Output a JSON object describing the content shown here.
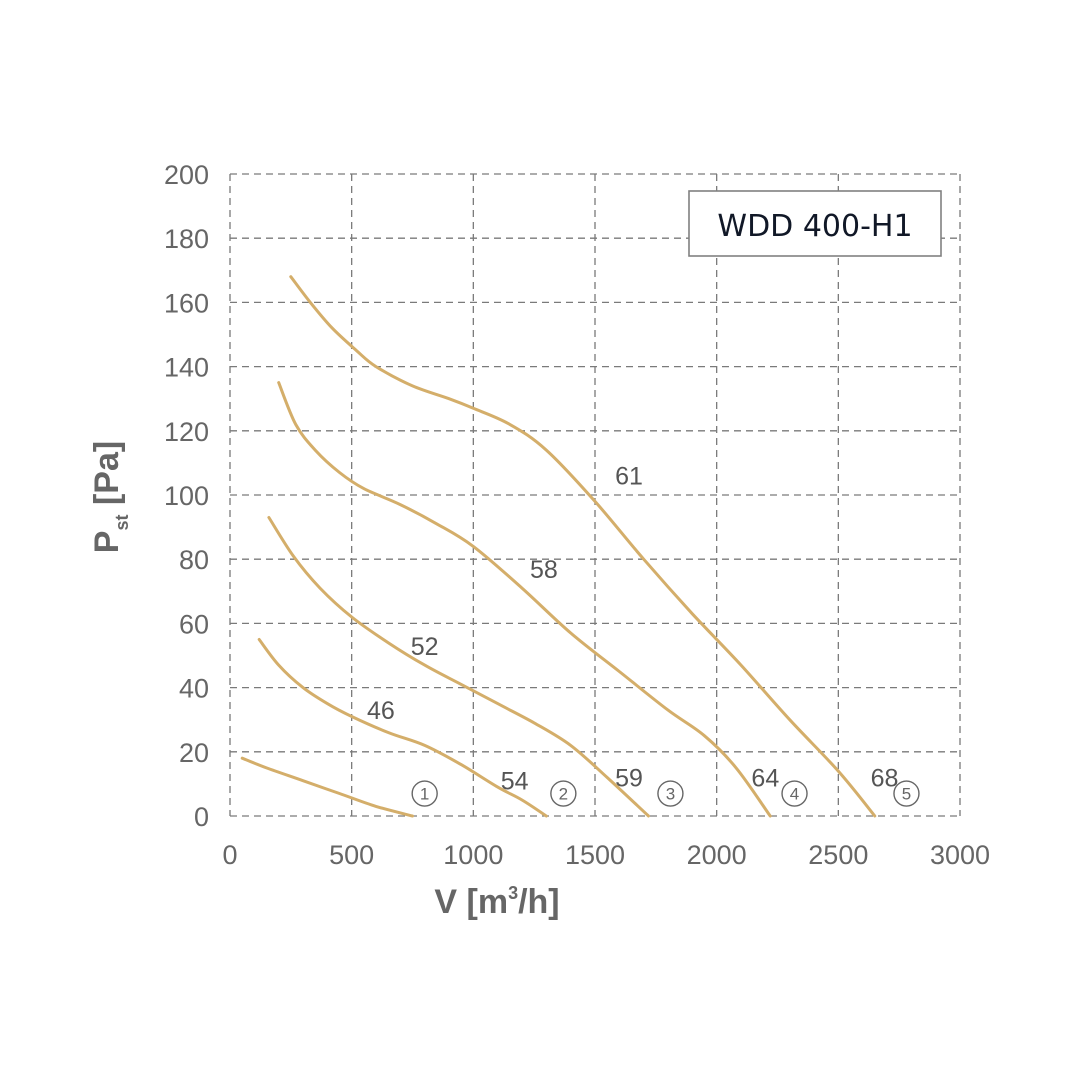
{
  "chart_data": {
    "type": "line",
    "title": "WDD 400-H1",
    "xlabel": "V [m³/h]",
    "xlabel_parts": {
      "main": "V [m",
      "sup": "3",
      "rest": "/h]"
    },
    "ylabel": "Pst [Pa]",
    "ylabel_parts": {
      "main": "P",
      "sub": "st",
      "rest": " [Pa]"
    },
    "xlim": [
      0,
      3000
    ],
    "ylim": [
      0,
      200
    ],
    "x_ticks": [
      0,
      500,
      1000,
      1500,
      2000,
      2500,
      3000
    ],
    "y_ticks": [
      0,
      20,
      40,
      60,
      80,
      100,
      120,
      140,
      160,
      180,
      200
    ],
    "grid": true,
    "line_color": "#d4ae6a",
    "series": [
      {
        "name": "①",
        "label_at": [
          800,
          7
        ],
        "x": [
          50,
          150,
          300,
          450,
          600,
          750
        ],
        "y": [
          18,
          15,
          11,
          7,
          3,
          0
        ]
      },
      {
        "name": "②",
        "label_at": [
          1370,
          7
        ],
        "x": [
          120,
          200,
          300,
          400,
          500,
          650,
          800,
          950,
          1100,
          1200,
          1300
        ],
        "y": [
          55,
          47,
          40,
          35,
          31,
          26,
          22,
          16,
          9,
          5,
          0
        ]
      },
      {
        "name": "③",
        "label_at": [
          1810,
          7
        ],
        "x": [
          160,
          260,
          370,
          500,
          650,
          800,
          950,
          1100,
          1250,
          1400,
          1550,
          1720
        ],
        "y": [
          93,
          81,
          71,
          62,
          54,
          47,
          41,
          35,
          29,
          22,
          12,
          0
        ]
      },
      {
        "name": "④",
        "label_at": [
          2320,
          7
        ],
        "x": [
          200,
          270,
          350,
          450,
          550,
          700,
          850,
          1000,
          1200,
          1400,
          1600,
          1800,
          1950,
          2080,
          2220
        ],
        "y": [
          135,
          122,
          114,
          107,
          102,
          97,
          91,
          84,
          71,
          57,
          45,
          33,
          25,
          15,
          0
        ]
      },
      {
        "name": "⑤",
        "label_at": [
          2780,
          7
        ],
        "x": [
          250,
          330,
          420,
          520,
          600,
          750,
          900,
          1000,
          1150,
          1300,
          1500,
          1700,
          1900,
          2100,
          2300,
          2500,
          2650
        ],
        "y": [
          168,
          160,
          152,
          145,
          140,
          134,
          130,
          127,
          122,
          114,
          98,
          80,
          63,
          47,
          30,
          14,
          0
        ]
      }
    ],
    "annotations": [
      {
        "text": "46",
        "x": 620,
        "y": 33
      },
      {
        "text": "52",
        "x": 800,
        "y": 53
      },
      {
        "text": "58",
        "x": 1290,
        "y": 77
      },
      {
        "text": "61",
        "x": 1640,
        "y": 106
      },
      {
        "text": "54",
        "x": 1170,
        "y": 11
      },
      {
        "text": "59",
        "x": 1640,
        "y": 12
      },
      {
        "text": "64",
        "x": 2200,
        "y": 12
      },
      {
        "text": "68",
        "x": 2690,
        "y": 12
      }
    ]
  }
}
